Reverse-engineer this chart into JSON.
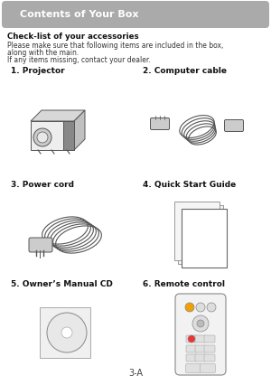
{
  "title": "Contents of Your Box",
  "title_bar_color": "#aaaaaa",
  "title_text_color": "#ffffff",
  "bg_color": "#ffffff",
  "header_bold": "Check-list of your accessories",
  "header_text1": "Please make sure that following items are included in the box,",
  "header_text2": "along with the main.",
  "header_text3": "If any items missing, contact your dealer.",
  "label1": "1. Projector",
  "label2": "2. Computer cable",
  "label3": "3. Power cord",
  "label4": "4. Quick Start Guide",
  "label5": "5. Owner’s Manual CD",
  "label6": "6. Remote control",
  "footer": "3-A"
}
